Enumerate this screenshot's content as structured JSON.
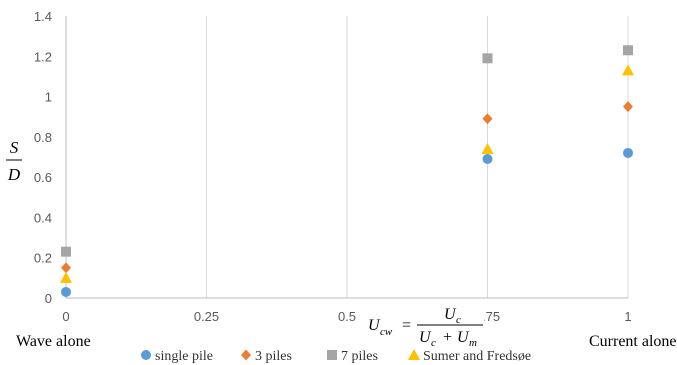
{
  "chart_data": {
    "type": "scatter",
    "title": "",
    "xlim": [
      0,
      1
    ],
    "ylim": [
      0,
      1.4
    ],
    "x_ticks": [
      0,
      0.25,
      0.5,
      0.75,
      1
    ],
    "x_tick_labels": [
      "0",
      "0.25",
      "0.5",
      "0.75",
      "1"
    ],
    "y_ticks": [
      0,
      0.2,
      0.4,
      0.6,
      0.8,
      1,
      1.2,
      1.4
    ],
    "y_tick_labels": [
      "0",
      "0.2",
      "0.4",
      "0.6",
      "0.8",
      "1",
      "1.2",
      "1.4"
    ],
    "x_end_labels": {
      "left": "Wave alone",
      "right": "Current alone"
    },
    "ylabel": {
      "numerator": "S",
      "denominator": "D"
    },
    "xlabel_formula": {
      "lhs": "U",
      "lhs_sub": "cw",
      "equals": "=",
      "numerator": "U",
      "numerator_sub": "c",
      "denominator": "U",
      "denominator_sub": "c",
      "plus": "+",
      "denominator2": "U",
      "denominator2_sub": "m"
    },
    "grid": "vertical",
    "legend_position": "bottom",
    "series": [
      {
        "name": "single pile",
        "marker": "circle",
        "color": "#5b9bd5",
        "x": [
          0,
          0.75,
          1
        ],
        "y": [
          0.03,
          0.69,
          0.72
        ]
      },
      {
        "name": "3 piles",
        "marker": "diamond",
        "color": "#ed7d31",
        "x": [
          0,
          0.75,
          1
        ],
        "y": [
          0.15,
          0.89,
          0.95
        ]
      },
      {
        "name": "7 piles",
        "marker": "square",
        "color": "#a5a5a5",
        "x": [
          0,
          0.75,
          1
        ],
        "y": [
          0.23,
          1.19,
          1.23
        ]
      },
      {
        "name": "Sumer and Fredsøe",
        "marker": "triangle",
        "color": "#ffc000",
        "x": [
          0,
          0.75,
          1
        ],
        "y": [
          0.1,
          0.74,
          1.13
        ]
      }
    ]
  }
}
